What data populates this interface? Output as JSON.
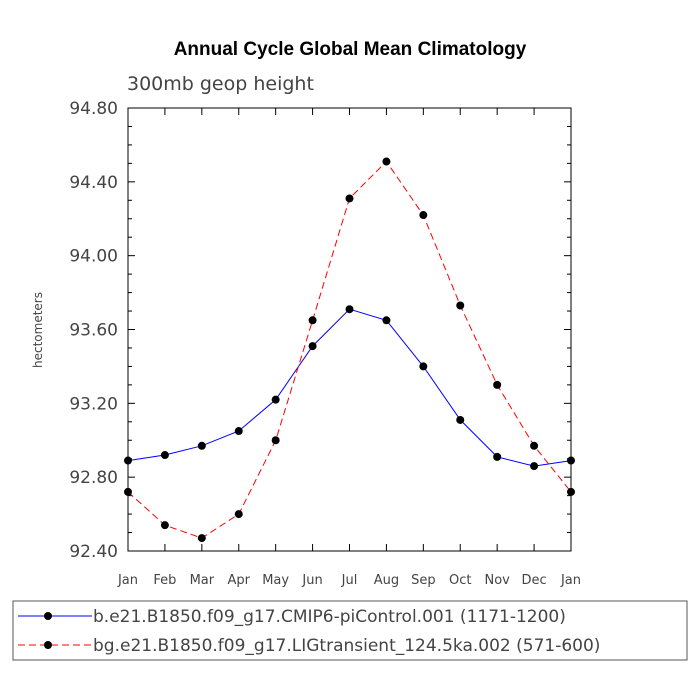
{
  "chart_data": {
    "type": "line",
    "title": "Annual Cycle Global Mean Climatology",
    "subtitle": "300mb geop height",
    "ylabel": "hectometers",
    "xlabel": "",
    "categories": [
      "Jan",
      "Feb",
      "Mar",
      "Apr",
      "May",
      "Jun",
      "Jul",
      "Aug",
      "Sep",
      "Oct",
      "Nov",
      "Dec",
      "Jan"
    ],
    "ylim": [
      92.4,
      94.8
    ],
    "yticks": [
      "92.40",
      "92.80",
      "93.20",
      "93.60",
      "94.00",
      "94.40",
      "94.80"
    ],
    "grid": false,
    "legend_position": "bottom",
    "series": [
      {
        "name": "b.e21.B1850.f09_g17.CMIP6-piControl.001 (1171-1200)",
        "color": "#0000ff",
        "line_style": "solid",
        "values": [
          92.89,
          92.92,
          92.97,
          93.05,
          93.22,
          93.51,
          93.71,
          93.65,
          93.4,
          93.11,
          92.91,
          92.86,
          92.89
        ]
      },
      {
        "name": "bg.e21.B1850.f09_g17.LIGtransient_124.5ka.002 (571-600)",
        "color": "#ff0000",
        "line_style": "dashed",
        "values": [
          92.72,
          92.54,
          92.47,
          92.6,
          93.0,
          93.65,
          94.31,
          94.51,
          94.22,
          93.73,
          93.3,
          92.97,
          92.72
        ]
      }
    ]
  }
}
